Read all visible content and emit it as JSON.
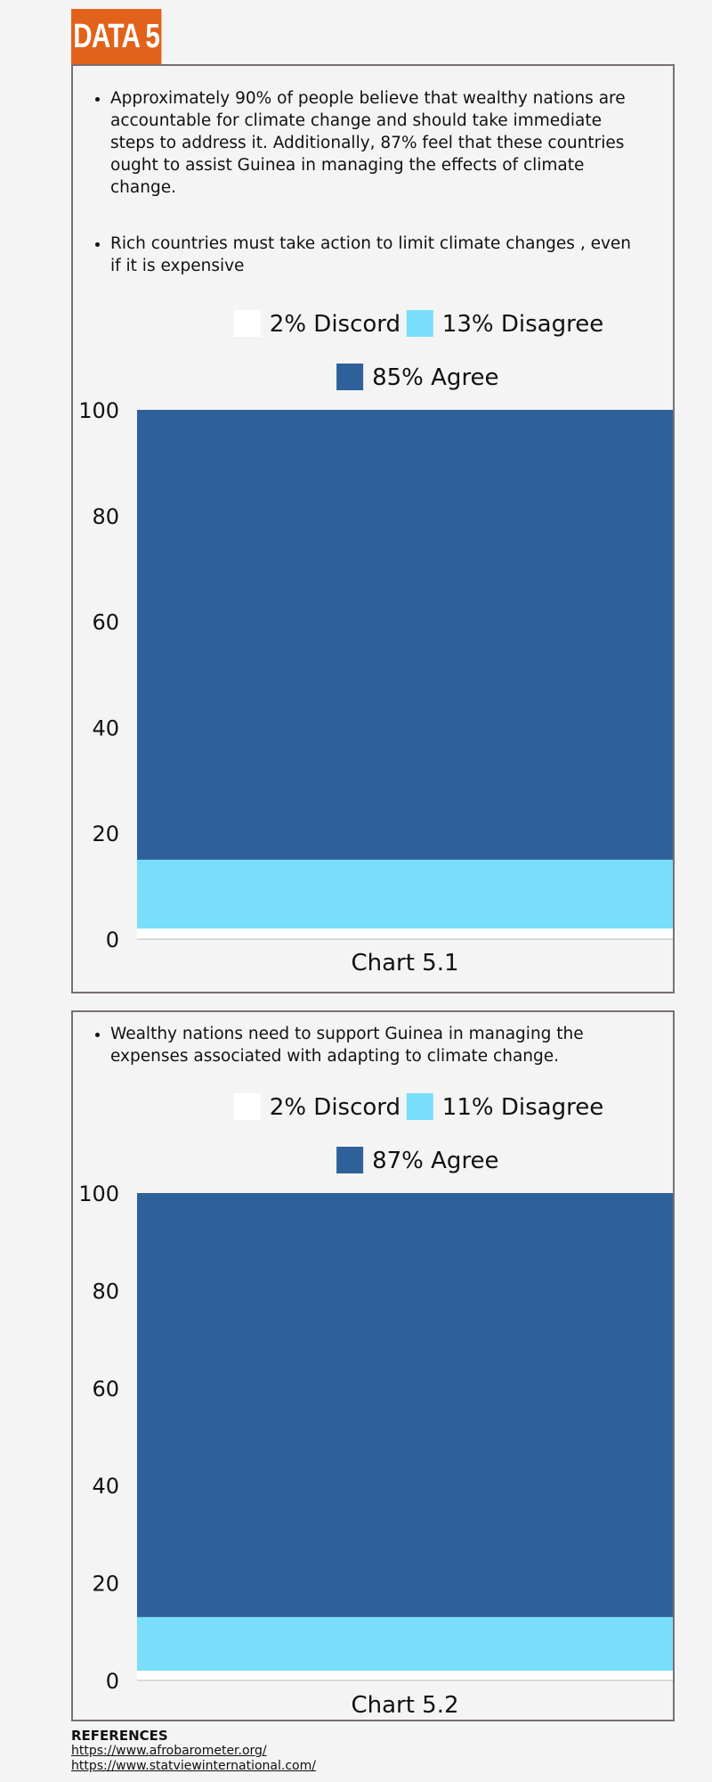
{
  "header": {
    "title": "DATA 5"
  },
  "section1": {
    "bullets": [
      "Approximately 90% of people believe that wealthy nations are accountable for climate change and should take immediate steps to address it. Additionally, 87% feel that these countries ought to assist Guinea in managing the effects of climate change.",
      "Rich countries must take action to limit climate changes , even if it is expensive"
    ]
  },
  "section2": {
    "bullets": [
      "Wealthy nations need to support Guinea in managing the expenses associated with adapting to climate change."
    ]
  },
  "references": {
    "title": "REFERENCES",
    "links": [
      "https://www.afrobarometer.org/",
      "https://www.statviewinternational.com/"
    ]
  },
  "colors": {
    "accent": "#e2621b",
    "discord": "#ffffff",
    "disagree": "#78defc",
    "agree": "#2e6199"
  },
  "chart_data": [
    {
      "type": "bar",
      "stacked": true,
      "title": "",
      "categories": [
        "Chart 5.1"
      ],
      "xlabel": "Chart 5.1",
      "ylim": [
        0,
        100
      ],
      "yticks": [
        0,
        20,
        40,
        60,
        80,
        100
      ],
      "legend_placement": "top",
      "series": [
        {
          "name": "2% Discord",
          "values": [
            2
          ],
          "color": "#ffffff"
        },
        {
          "name": "13% Disagree",
          "values": [
            13
          ],
          "color": "#78defc"
        },
        {
          "name": "85% Agree",
          "values": [
            85
          ],
          "color": "#2e6199"
        }
      ]
    },
    {
      "type": "bar",
      "stacked": true,
      "title": "",
      "categories": [
        "Chart 5.2"
      ],
      "xlabel": "Chart 5.2",
      "ylim": [
        0,
        100
      ],
      "yticks": [
        0,
        20,
        40,
        60,
        80,
        100
      ],
      "legend_placement": "top",
      "series": [
        {
          "name": "2% Discord",
          "values": [
            2
          ],
          "color": "#ffffff"
        },
        {
          "name": "11% Disagree",
          "values": [
            11
          ],
          "color": "#78defc"
        },
        {
          "name": "87% Agree",
          "values": [
            87
          ],
          "color": "#2e6199"
        }
      ]
    }
  ]
}
